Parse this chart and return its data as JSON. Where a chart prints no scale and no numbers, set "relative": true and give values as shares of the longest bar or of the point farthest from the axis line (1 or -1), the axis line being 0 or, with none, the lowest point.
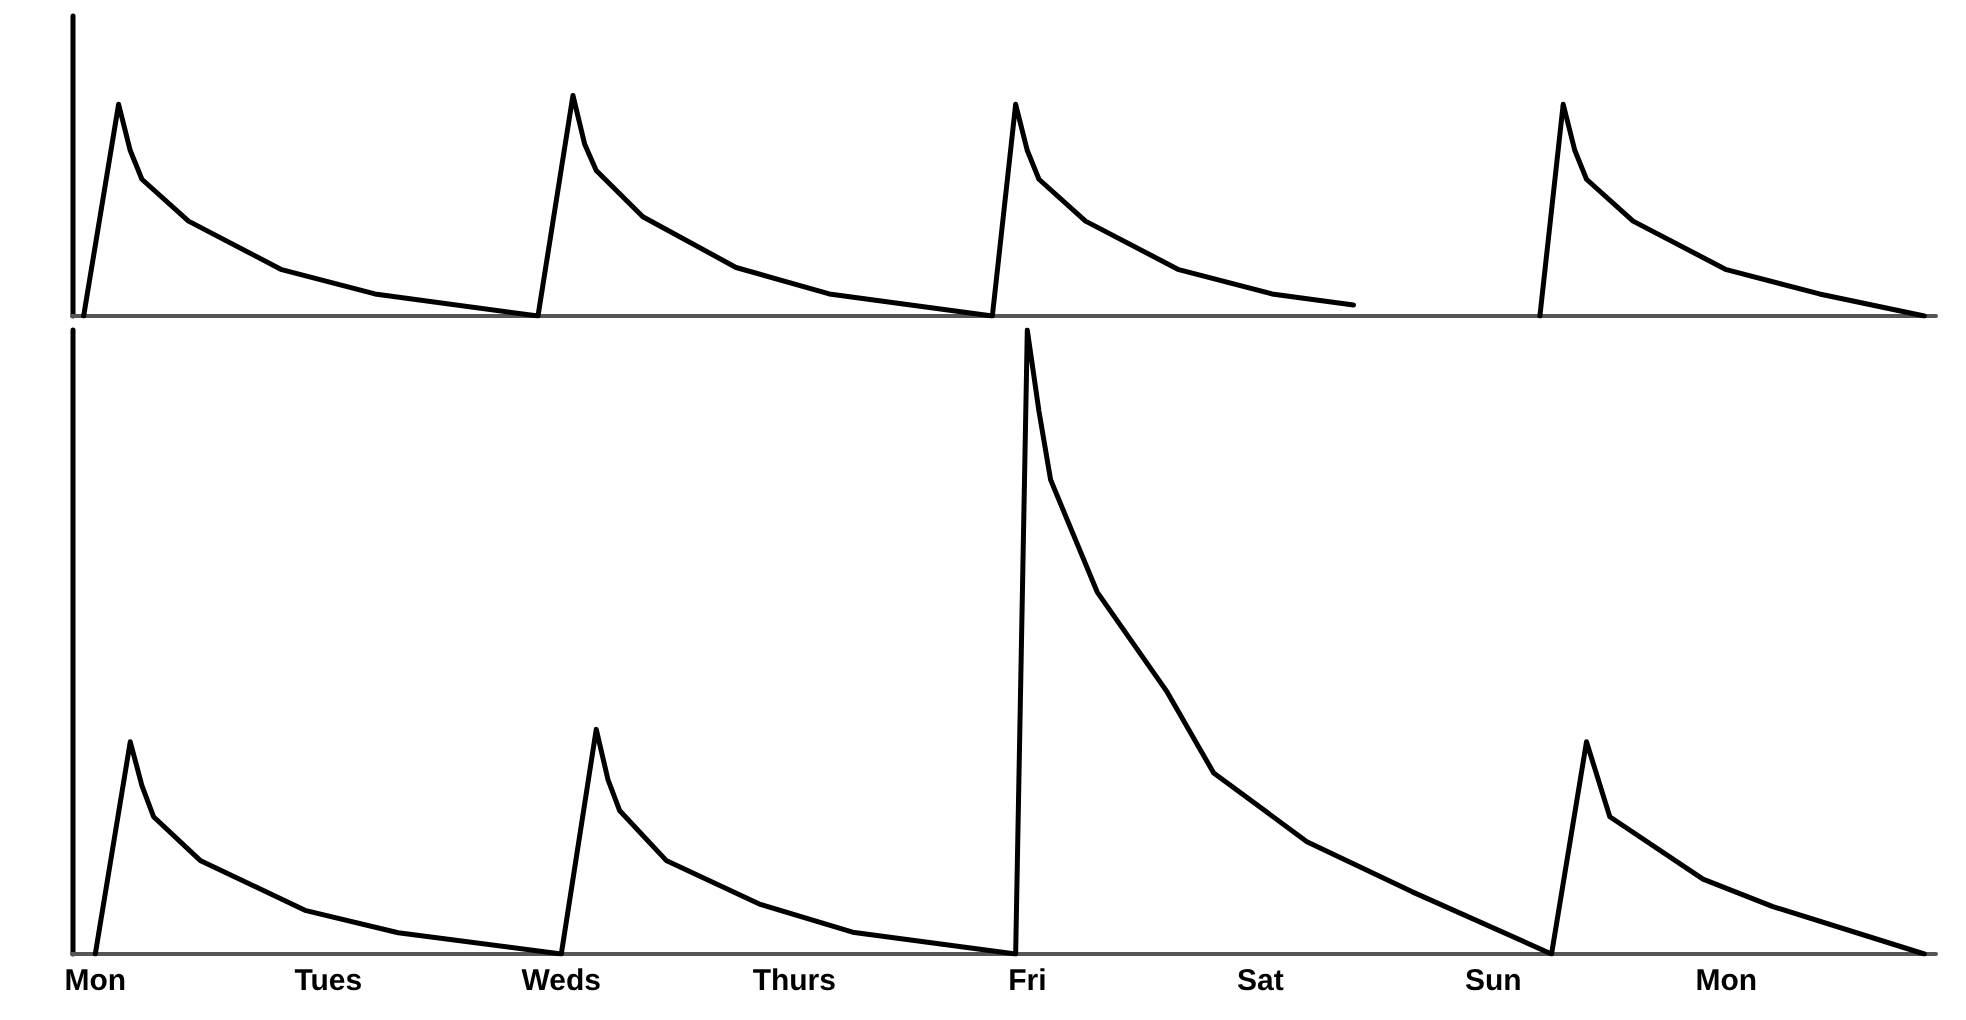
{
  "chart_data": [
    {
      "type": "line",
      "relative": true,
      "marker": "none",
      "line_style": "solid",
      "tick_labels": false,
      "categories": [
        null,
        null,
        null,
        null,
        null,
        null,
        null,
        null,
        null,
        null,
        null,
        null,
        null,
        null,
        null,
        null,
        null,
        null,
        null,
        null,
        null,
        null,
        null,
        null,
        null,
        null,
        null,
        null,
        null,
        null,
        null,
        null,
        null,
        null,
        null,
        null,
        null,
        null,
        null,
        null,
        null,
        null,
        null,
        null,
        null,
        null,
        null,
        null,
        null,
        null,
        null,
        null,
        null,
        null,
        null,
        null,
        null,
        null,
        null,
        null,
        null,
        null,
        null,
        null,
        null,
        null,
        null,
        null,
        null,
        null,
        null,
        null,
        null,
        null,
        null,
        null,
        null,
        null,
        null,
        null,
        null,
        null,
        null,
        null,
        null,
        null,
        null,
        null,
        null,
        null,
        null,
        null,
        null,
        null,
        null,
        null,
        null,
        null,
        null,
        null,
        null,
        null,
        null,
        null,
        null,
        null,
        null,
        null,
        null,
        null,
        null,
        null,
        null,
        null,
        null,
        null,
        null,
        null,
        null,
        null,
        null,
        null,
        null,
        null,
        null,
        null,
        null,
        null,
        null,
        null,
        null,
        null,
        null,
        null,
        null,
        null,
        null,
        null,
        null,
        null,
        null,
        null,
        null,
        null,
        null,
        null,
        null,
        null,
        null,
        null,
        null,
        null,
        null,
        null,
        null,
        null,
        null,
        null,
        null,
        null,
        null
      ],
      "series": [
        {
          "color": "#000000",
          "values": [
            null,
            0,
            null,
            null,
            0.96,
            0.75,
            0.62,
            null,
            null,
            null,
            0.43,
            null,
            null,
            null,
            null,
            null,
            null,
            null,
            0.21,
            null,
            null,
            null,
            null,
            null,
            null,
            null,
            0.1,
            null,
            null,
            null,
            null,
            null,
            null,
            null,
            null,
            null,
            null,
            null,
            null,
            null,
            0,
            null,
            null,
            1.0,
            0.78,
            0.66,
            null,
            null,
            null,
            0.45,
            null,
            null,
            null,
            null,
            null,
            null,
            null,
            0.22,
            null,
            null,
            null,
            null,
            null,
            null,
            null,
            0.1,
            null,
            null,
            null,
            null,
            null,
            null,
            null,
            null,
            null,
            null,
            null,
            null,
            null,
            0,
            null,
            0.96,
            0.75,
            0.62,
            null,
            null,
            null,
            0.43,
            null,
            null,
            null,
            null,
            null,
            null,
            null,
            0.21,
            null,
            null,
            null,
            null,
            null,
            null,
            null,
            0.1,
            null,
            null,
            null,
            null,
            null,
            null,
            0.05,
            null,
            null,
            null,
            null,
            null,
            null,
            null,
            null,
            null,
            null,
            null,
            null,
            null,
            null,
            null,
            null,
            null,
            null,
            null,
            null,
            null,
            null,
            null,
            null,
            null,
            null,
            null,
            null,
            null,
            null,
            null,
            null,
            null,
            null,
            null,
            null,
            null,
            null,
            null,
            null,
            null,
            null,
            null,
            null,
            null,
            null,
            null,
            null,
            null,
            null
          ]
        },
        {
          "color": "#000000",
          "values": [
            null,
            null,
            null,
            null,
            null,
            null,
            null,
            null,
            null,
            null,
            null,
            null,
            null,
            null,
            null,
            null,
            null,
            null,
            null,
            null,
            null,
            null,
            null,
            null,
            null,
            null,
            null,
            null,
            null,
            null,
            null,
            null,
            null,
            null,
            null,
            null,
            null,
            null,
            null,
            null,
            null,
            null,
            null,
            null,
            null,
            null,
            null,
            null,
            null,
            null,
            null,
            null,
            null,
            null,
            null,
            null,
            null,
            null,
            null,
            null,
            null,
            null,
            null,
            null,
            null,
            null,
            null,
            null,
            null,
            null,
            null,
            null,
            null,
            null,
            null,
            null,
            null,
            null,
            null,
            null,
            null,
            null,
            null,
            null,
            null,
            null,
            null,
            null,
            null,
            null,
            null,
            null,
            null,
            null,
            null,
            null,
            null,
            null,
            null,
            null,
            null,
            null,
            null,
            null,
            null,
            null,
            null,
            null,
            null,
            null,
            null,
            null,
            null,
            null,
            null,
            null,
            null,
            null,
            null,
            null,
            null,
            null,
            null,
            null,
            null,
            null,
            0,
            null,
            0.96,
            0.75,
            0.62,
            null,
            null,
            null,
            0.43,
            null,
            null,
            null,
            null,
            null,
            null,
            null,
            0.21,
            null,
            null,
            null,
            null,
            null,
            null,
            null,
            0.1,
            null,
            null,
            null,
            null,
            null,
            null,
            null,
            null,
            0,
            null
          ]
        }
      ]
    },
    {
      "type": "line",
      "relative": true,
      "marker": "none",
      "line_style": "solid",
      "tick_labels": "x",
      "categories": [
        null,
        null,
        "Mon",
        null,
        null,
        null,
        null,
        null,
        null,
        null,
        null,
        null,
        null,
        null,
        null,
        null,
        null,
        null,
        null,
        null,
        null,
        null,
        "Tues",
        null,
        null,
        null,
        null,
        null,
        null,
        null,
        null,
        null,
        null,
        null,
        null,
        null,
        null,
        null,
        null,
        null,
        null,
        null,
        "Weds",
        null,
        null,
        null,
        null,
        null,
        null,
        null,
        null,
        null,
        null,
        null,
        null,
        null,
        null,
        null,
        null,
        null,
        null,
        null,
        "Thurs",
        null,
        null,
        null,
        null,
        null,
        null,
        null,
        null,
        null,
        null,
        null,
        null,
        null,
        null,
        null,
        null,
        null,
        null,
        null,
        "Fri",
        null,
        null,
        null,
        null,
        null,
        null,
        null,
        null,
        null,
        null,
        null,
        null,
        null,
        null,
        null,
        null,
        null,
        null,
        null,
        "Sat",
        null,
        null,
        null,
        null,
        null,
        null,
        null,
        null,
        null,
        null,
        null,
        null,
        null,
        null,
        null,
        null,
        null,
        null,
        null,
        "Sun",
        null,
        null,
        null,
        null,
        null,
        null,
        null,
        null,
        null,
        null,
        null,
        null,
        null,
        null,
        null,
        null,
        null,
        null,
        null,
        "Mon",
        null,
        null,
        null,
        null,
        null,
        null,
        null,
        null,
        null,
        null,
        null,
        null,
        null,
        null,
        null,
        null,
        null,
        null
      ],
      "series": [
        {
          "color": "#000000",
          "values": [
            null,
            null,
            0,
            null,
            null,
            0.34,
            0.27,
            0.22,
            null,
            null,
            null,
            0.15,
            null,
            null,
            null,
            null,
            null,
            null,
            null,
            null,
            0.07,
            null,
            null,
            null,
            null,
            null,
            null,
            null,
            0.034,
            null,
            null,
            null,
            null,
            null,
            null,
            null,
            null,
            null,
            null,
            null,
            null,
            null,
            0,
            null,
            null,
            0.36,
            0.28,
            0.23,
            null,
            null,
            null,
            0.15,
            null,
            null,
            null,
            null,
            null,
            null,
            null,
            0.08,
            null,
            null,
            null,
            null,
            null,
            null,
            null,
            0.035,
            null,
            null,
            null,
            null,
            null,
            null,
            null,
            null,
            null,
            null,
            null,
            null,
            null,
            0,
            1.0,
            0.87,
            0.76,
            null,
            null,
            null,
            0.58,
            null,
            null,
            null,
            null,
            null,
            0.42,
            null,
            null,
            null,
            0.29,
            null,
            null,
            null,
            null,
            null,
            null,
            null,
            0.18,
            null,
            null,
            null,
            null,
            null,
            null,
            null,
            null,
            0.1,
            null,
            null,
            null,
            null,
            null,
            null,
            null,
            null,
            null,
            null,
            null,
            0,
            null,
            null,
            0.34,
            0.28,
            0.22,
            null,
            null,
            null,
            null,
            null,
            null,
            null,
            0.12,
            null,
            null,
            null,
            null,
            null,
            0.076,
            null,
            null,
            null,
            null,
            null,
            null,
            null,
            null,
            null,
            null,
            null,
            null,
            0,
            null
          ]
        }
      ]
    }
  ]
}
